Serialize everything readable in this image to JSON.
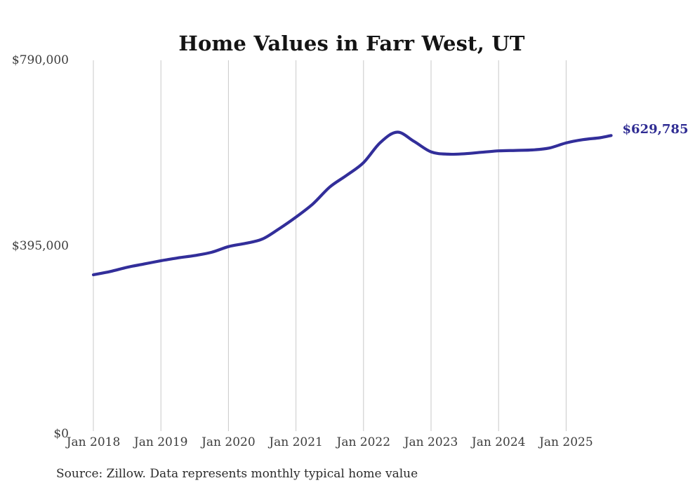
{
  "title": "Home Values in Farr West, UT",
  "source_note": "Source: Zillow. Data represents monthly typical home value",
  "end_label": "$629,785",
  "colors": {
    "line": "#322e9a",
    "grid": "#c9c9c9",
    "axis_text": "#3d3d3d",
    "title_text": "#141414",
    "end_label_text": "#2f2c93"
  },
  "y_axis": {
    "ticks": [
      {
        "value": 790000,
        "label": "$790,000"
      },
      {
        "value": 395000,
        "label": "$395,000"
      },
      {
        "value": 0,
        "label": "$0"
      }
    ]
  },
  "x_axis": {
    "tick_years": [
      2018,
      2019,
      2020,
      2021,
      2022,
      2023,
      2024,
      2025
    ],
    "tick_labels": [
      "Jan 2018",
      "Jan 2019",
      "Jan 2020",
      "Jan 2021",
      "Jan 2022",
      "Jan 2023",
      "Jan 2024",
      "Jan 2025"
    ]
  },
  "chart_data": {
    "type": "line",
    "title": "Home Values in Farr West, UT",
    "xlabel": "",
    "ylabel": "",
    "ylim": [
      0,
      790000
    ],
    "y_tick_values": [
      0,
      395000,
      790000
    ],
    "x_tick_labels": [
      "Jan 2018",
      "Jan 2019",
      "Jan 2020",
      "Jan 2021",
      "Jan 2022",
      "Jan 2023",
      "Jan 2024",
      "Jan 2025"
    ],
    "grid": "vertical-only",
    "legend": "none",
    "series_name": "Typical home value (monthly)",
    "x": [
      "2018-01",
      "2018-04",
      "2018-07",
      "2018-10",
      "2019-01",
      "2019-04",
      "2019-07",
      "2019-10",
      "2020-01",
      "2020-04",
      "2020-07",
      "2020-10",
      "2021-01",
      "2021-04",
      "2021-07",
      "2021-10",
      "2022-01",
      "2022-04",
      "2022-07",
      "2022-10",
      "2023-01",
      "2023-04",
      "2023-07",
      "2023-10",
      "2024-01",
      "2024-04",
      "2024-07",
      "2024-10",
      "2025-01",
      "2025-04",
      "2025-07",
      "2025-09"
    ],
    "values": [
      333000,
      340000,
      349000,
      356000,
      363000,
      369000,
      374000,
      381000,
      393000,
      400000,
      409000,
      431000,
      456000,
      484000,
      520000,
      545000,
      572000,
      615000,
      637000,
      617000,
      595000,
      590000,
      591000,
      594000,
      597000,
      598000,
      599000,
      603000,
      614000,
      621000,
      625000,
      629785
    ],
    "final_value": 629785,
    "final_value_label": "$629,785"
  }
}
